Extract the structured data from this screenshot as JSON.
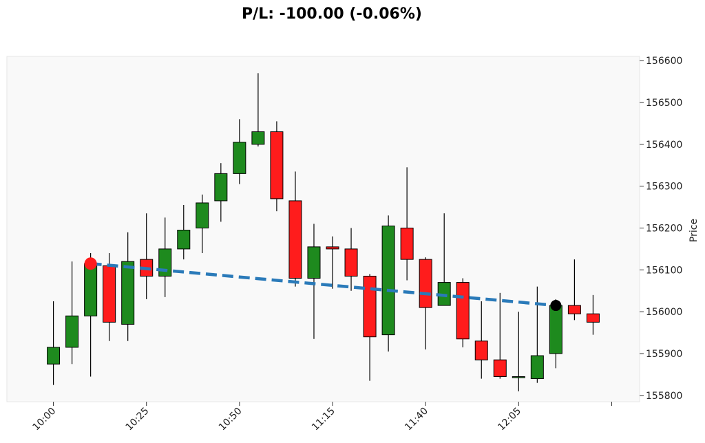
{
  "chart_data": {
    "type": "candlestick",
    "title": "P/L: -100.00 (-0.06%)",
    "ylabel": "Price",
    "xlabel": "",
    "ylim": [
      155785,
      156610
    ],
    "y_axis_side": "right",
    "yticks": [
      155800,
      155900,
      156000,
      156100,
      156200,
      156300,
      156400,
      156500,
      156600
    ],
    "xtick_labels": [
      {
        "index": 0,
        "label": "10:00"
      },
      {
        "index": 5,
        "label": "10:25"
      },
      {
        "index": 10,
        "label": "10:50"
      },
      {
        "index": 15,
        "label": "11:15"
      },
      {
        "index": 20,
        "label": "11:40"
      },
      {
        "index": 25,
        "label": "12:05"
      },
      {
        "index": 30,
        "label": ""
      }
    ],
    "x_index_range": [
      -2.5,
      31.5
    ],
    "grid": false,
    "background": "#f9f9f9",
    "colors": {
      "up": "#1e8a1e",
      "down": "#ff1c1c",
      "trade_line": "#2a7ab9",
      "entry_marker": "#ff1c1c",
      "exit_marker": "#000000"
    },
    "candles": [
      {
        "time": "10:00",
        "open": 155875,
        "high": 156025,
        "low": 155825,
        "close": 155915
      },
      {
        "time": "10:05",
        "open": 155915,
        "high": 156120,
        "low": 155875,
        "close": 155990
      },
      {
        "time": "10:10",
        "open": 155990,
        "high": 156140,
        "low": 155845,
        "close": 156115
      },
      {
        "time": "10:15",
        "open": 156110,
        "high": 156140,
        "low": 155930,
        "close": 155975
      },
      {
        "time": "10:20",
        "open": 155970,
        "high": 156190,
        "low": 155930,
        "close": 156120
      },
      {
        "time": "10:25",
        "open": 156125,
        "high": 156235,
        "low": 156030,
        "close": 156085
      },
      {
        "time": "10:30",
        "open": 156085,
        "high": 156225,
        "low": 156035,
        "close": 156150
      },
      {
        "time": "10:35",
        "open": 156150,
        "high": 156255,
        "low": 156125,
        "close": 156195
      },
      {
        "time": "10:40",
        "open": 156200,
        "high": 156280,
        "low": 156140,
        "close": 156260
      },
      {
        "time": "10:45",
        "open": 156265,
        "high": 156355,
        "low": 156215,
        "close": 156330
      },
      {
        "time": "10:50",
        "open": 156330,
        "high": 156460,
        "low": 156305,
        "close": 156405
      },
      {
        "time": "10:55",
        "open": 156400,
        "high": 156570,
        "low": 156395,
        "close": 156430
      },
      {
        "time": "11:00",
        "open": 156430,
        "high": 156455,
        "low": 156240,
        "close": 156270
      },
      {
        "time": "11:05",
        "open": 156265,
        "high": 156335,
        "low": 156060,
        "close": 156080
      },
      {
        "time": "11:10",
        "open": 156080,
        "high": 156210,
        "low": 155935,
        "close": 156155
      },
      {
        "time": "11:15",
        "open": 156155,
        "high": 156180,
        "low": 156055,
        "close": 156150
      },
      {
        "time": "11:20",
        "open": 156150,
        "high": 156200,
        "low": 156050,
        "close": 156085
      },
      {
        "time": "11:25",
        "open": 156085,
        "high": 156090,
        "low": 155835,
        "close": 155940
      },
      {
        "time": "11:30",
        "open": 155945,
        "high": 156230,
        "low": 155905,
        "close": 156205
      },
      {
        "time": "11:35",
        "open": 156200,
        "high": 156345,
        "low": 156075,
        "close": 156125
      },
      {
        "time": "11:40",
        "open": 156125,
        "high": 156130,
        "low": 155910,
        "close": 156010
      },
      {
        "time": "11:45",
        "open": 156015,
        "high": 156235,
        "low": 156015,
        "close": 156070
      },
      {
        "time": "11:50",
        "open": 156070,
        "high": 156080,
        "low": 155915,
        "close": 155935
      },
      {
        "time": "11:55",
        "open": 155930,
        "high": 156025,
        "low": 155840,
        "close": 155885
      },
      {
        "time": "12:00",
        "open": 155885,
        "high": 156045,
        "low": 155840,
        "close": 155845
      },
      {
        "time": "12:05",
        "open": 155845,
        "high": 156000,
        "low": 155810,
        "close": 155845
      },
      {
        "time": "12:10",
        "open": 155840,
        "high": 156060,
        "low": 155830,
        "close": 155895
      },
      {
        "time": "12:15",
        "open": 155900,
        "high": 156030,
        "low": 155865,
        "close": 156015
      },
      {
        "time": "12:20",
        "open": 156015,
        "high": 156125,
        "low": 155980,
        "close": 155995
      },
      {
        "time": "12:25",
        "open": 155995,
        "high": 156040,
        "low": 155945,
        "close": 155975
      }
    ],
    "trade": {
      "entry": {
        "index": 2,
        "price": 156115
      },
      "exit": {
        "index": 27,
        "price": 156015
      }
    }
  }
}
